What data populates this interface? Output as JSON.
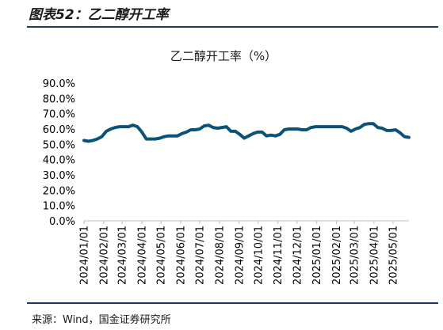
{
  "figure_title": "图表52：乙二醇开工率",
  "source": "来源：Wind，国金证券研究所",
  "colors": {
    "line": "#0b5375",
    "rule": "#1f3a5a"
  },
  "chart_data": {
    "type": "line",
    "title": "乙二醇开工率（%）",
    "xlabel": "",
    "ylabel": "",
    "ylim": [
      0,
      90
    ],
    "y_ticks": [
      "0.0%",
      "10.0%",
      "20.0%",
      "30.0%",
      "40.0%",
      "50.0%",
      "60.0%",
      "70.0%",
      "80.0%",
      "90.0%"
    ],
    "x_ticks": [
      "2024/01/01",
      "2024/02/01",
      "2024/03/01",
      "2024/04/01",
      "2024/05/01",
      "2024/06/01",
      "2024/07/01",
      "2024/08/01",
      "2024/09/01",
      "2024/10/01",
      "2024/11/01",
      "2024/12/01",
      "2025/01/01",
      "2025/02/01",
      "2025/03/01",
      "2025/04/01",
      "2025/05/01"
    ],
    "grid": false,
    "legend": "none",
    "series": [
      {
        "x": [
          "2024/01/01",
          "2024/01/08",
          "2024/01/15",
          "2024/01/22",
          "2024/01/29",
          "2024/02/05",
          "2024/02/12",
          "2024/02/19",
          "2024/02/26",
          "2024/03/04",
          "2024/03/11",
          "2024/03/18",
          "2024/03/25",
          "2024/04/01",
          "2024/04/08",
          "2024/04/15",
          "2024/04/22",
          "2024/04/29",
          "2024/05/06",
          "2024/05/13",
          "2024/05/20",
          "2024/05/27",
          "2024/06/03",
          "2024/06/10",
          "2024/06/17",
          "2024/06/24",
          "2024/07/01",
          "2024/07/08",
          "2024/07/15",
          "2024/07/22",
          "2024/07/29",
          "2024/08/05",
          "2024/08/12",
          "2024/08/19",
          "2024/08/26",
          "2024/09/02",
          "2024/09/09",
          "2024/09/16",
          "2024/09/23",
          "2024/09/30",
          "2024/10/07",
          "2024/10/14",
          "2024/10/21",
          "2024/10/28",
          "2024/11/04",
          "2024/11/11",
          "2024/11/18",
          "2024/11/25",
          "2024/12/02",
          "2024/12/09",
          "2024/12/16",
          "2024/12/23",
          "2024/12/30",
          "2025/01/06",
          "2025/01/13",
          "2025/01/20",
          "2025/01/27",
          "2025/02/03",
          "2025/02/10",
          "2025/02/17",
          "2025/02/24",
          "2025/03/03",
          "2025/03/10",
          "2025/03/17",
          "2025/03/24",
          "2025/03/31",
          "2025/04/07",
          "2025/04/14",
          "2025/04/21",
          "2025/04/28",
          "2025/05/05",
          "2025/05/12",
          "2025/05/19",
          "2025/05/26"
        ],
        "values": [
          52.5,
          52.0,
          52.5,
          53.5,
          55.0,
          58.5,
          60.0,
          61.0,
          61.5,
          61.5,
          61.5,
          62.5,
          61.5,
          58.0,
          53.5,
          53.5,
          53.5,
          54.0,
          55.0,
          55.5,
          55.5,
          55.5,
          57.0,
          58.0,
          59.5,
          59.5,
          60.0,
          62.0,
          62.5,
          61.0,
          60.5,
          61.0,
          61.5,
          58.5,
          58.5,
          56.5,
          54.0,
          55.5,
          57.0,
          58.0,
          58.0,
          55.5,
          56.0,
          55.5,
          56.5,
          59.5,
          60.0,
          60.0,
          60.0,
          59.5,
          59.5,
          61.0,
          61.5,
          61.5,
          61.5,
          61.5,
          61.5,
          61.5,
          61.5,
          60.5,
          58.5,
          60.0,
          61.0,
          63.0,
          63.5,
          63.5,
          61.0,
          60.5,
          59.0,
          59.0,
          59.5,
          57.5,
          55.0,
          54.5
        ]
      }
    ]
  }
}
